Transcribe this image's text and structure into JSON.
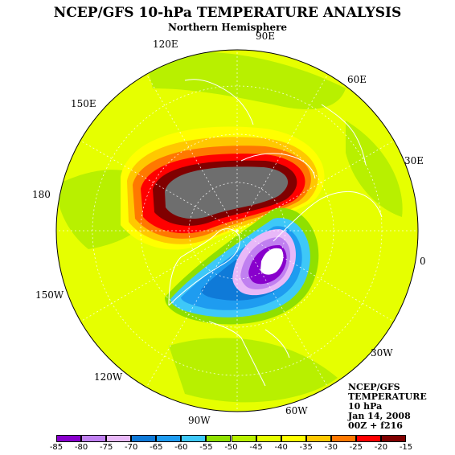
{
  "title": "NCEP/GFS 10-hPa TEMPERATURE ANALYSIS",
  "subtitle": "Northern Hemisphere",
  "longitude_labels": {
    "lon_90e": "90E",
    "lon_120e": "120E",
    "lon_60e": "60E",
    "lon_150e": "150E",
    "lon_30e": "30E",
    "lon_180": "180",
    "lon_0": "0",
    "lon_150w": "150W",
    "lon_30w": "30W",
    "lon_120w": "120W",
    "lon_60w": "60W",
    "lon_90w": "90W"
  },
  "info": {
    "model": "NCEP/GFS",
    "field": "TEMPERATURE",
    "level": "10 hPa",
    "date": "Jan 14, 2008",
    "run": "00Z + f216"
  },
  "colorbar": {
    "ticks": [
      "-85",
      "-80",
      "-75",
      "-70",
      "-65",
      "-60",
      "-55",
      "-50",
      "-45",
      "-40",
      "-35",
      "-30",
      "-25",
      "-20",
      "-15"
    ],
    "colors": [
      "#8800cc",
      "#c080f0",
      "#e8b8f8",
      "#0f7ad8",
      "#1e9cf0",
      "#3ec8f8",
      "#8fe000",
      "#b8f000",
      "#e6ff00",
      "#ffff00",
      "#ffc800",
      "#ff7800",
      "#ff0000",
      "#800000"
    ]
  },
  "colors": {
    "low_center": "#ffffff",
    "cold_core": "#6e6e6e"
  }
}
